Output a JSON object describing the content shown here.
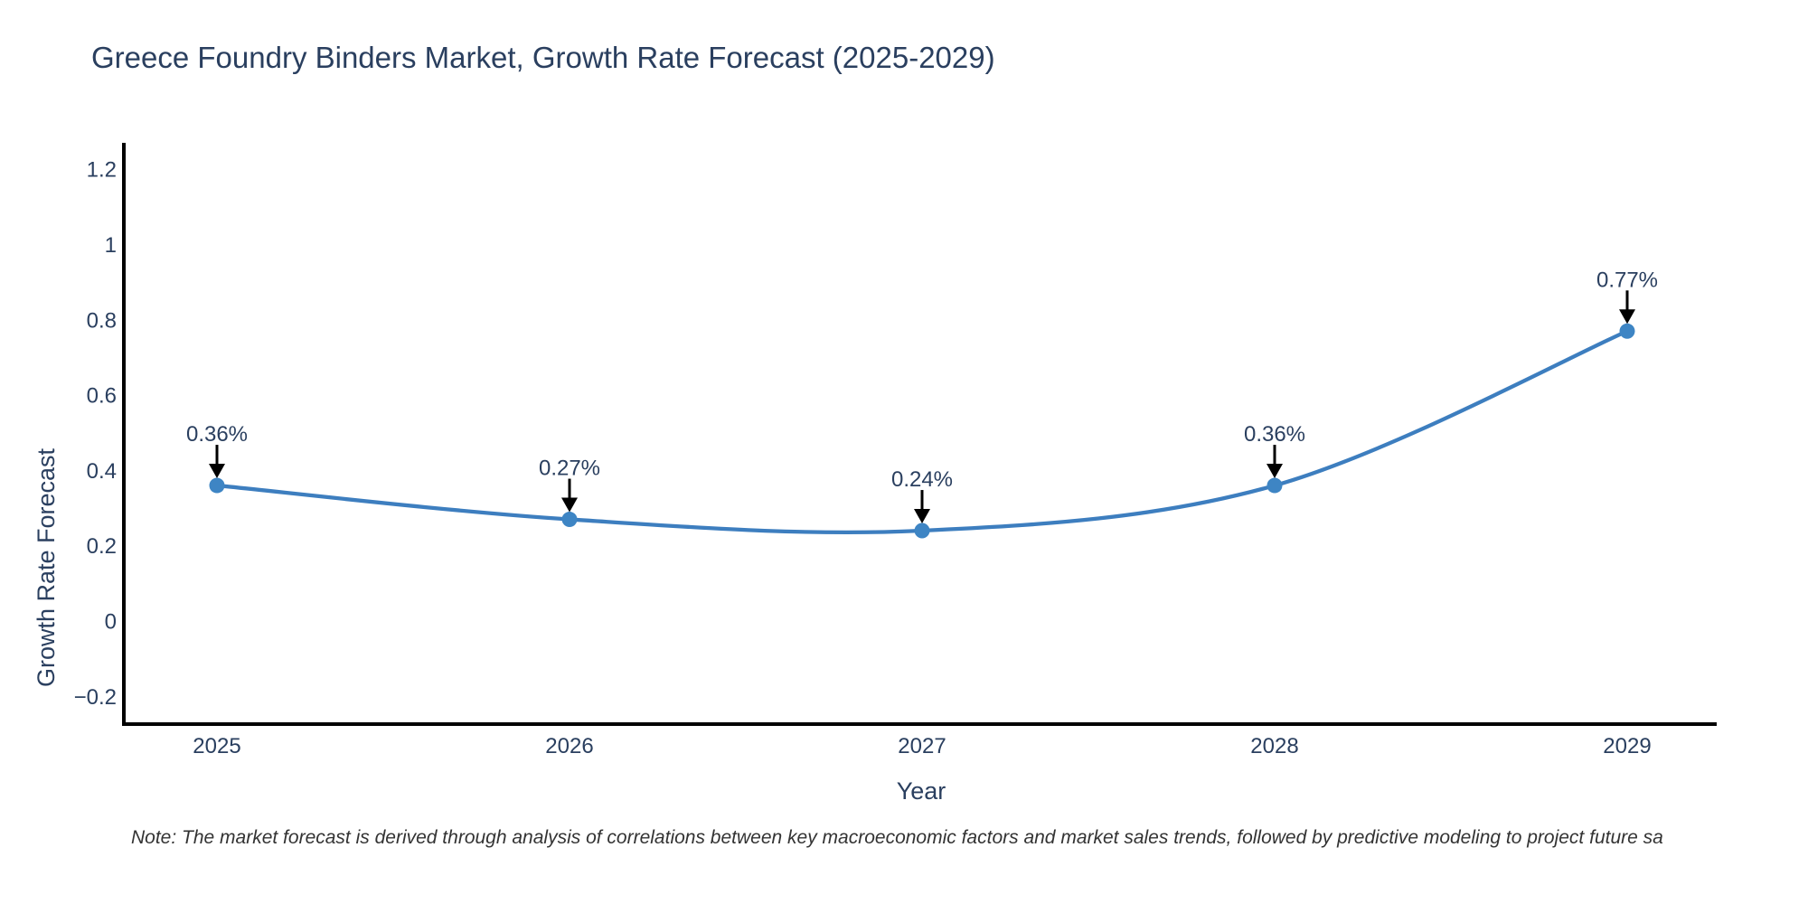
{
  "header": {
    "title": "Greece Foundry Binders Market, Growth Rate Forecast (2025-2029)"
  },
  "axes": {
    "x_title": "Year",
    "y_title": "Growth Rate Forecast"
  },
  "note": {
    "text": "Note: The market forecast is derived through analysis of correlations between key macroeconomic factors and market sales trends, followed by predictive modeling to project future sa"
  },
  "chart_data": {
    "type": "line",
    "title": "Greece Foundry Binders Market, Growth Rate Forecast (2025-2029)",
    "categories": [
      "2025",
      "2026",
      "2027",
      "2028",
      "2029"
    ],
    "values": [
      0.36,
      0.27,
      0.24,
      0.36,
      0.77
    ],
    "point_labels": [
      "0.36%",
      "0.27%",
      "0.24%",
      "0.36%",
      "0.77%"
    ],
    "xlabel": "Year",
    "ylabel": "Growth Rate Forecast",
    "ylim": [
      -0.28,
      1.27
    ],
    "ytick_values": [
      -0.2,
      0,
      0.2,
      0.4,
      0.6,
      0.8,
      1,
      1.2
    ],
    "ytick_labels": [
      "−0.2",
      "0",
      "0.2",
      "0.4",
      "0.6",
      "0.8",
      "1",
      "1.2"
    ],
    "grid": false,
    "legend": "none",
    "line_shape": "spline",
    "colors": {
      "line": "#3d7ebf",
      "marker": "#3e85c4",
      "axis": "#000000",
      "text": "#2a3f5f",
      "arrow": "#000000"
    }
  }
}
